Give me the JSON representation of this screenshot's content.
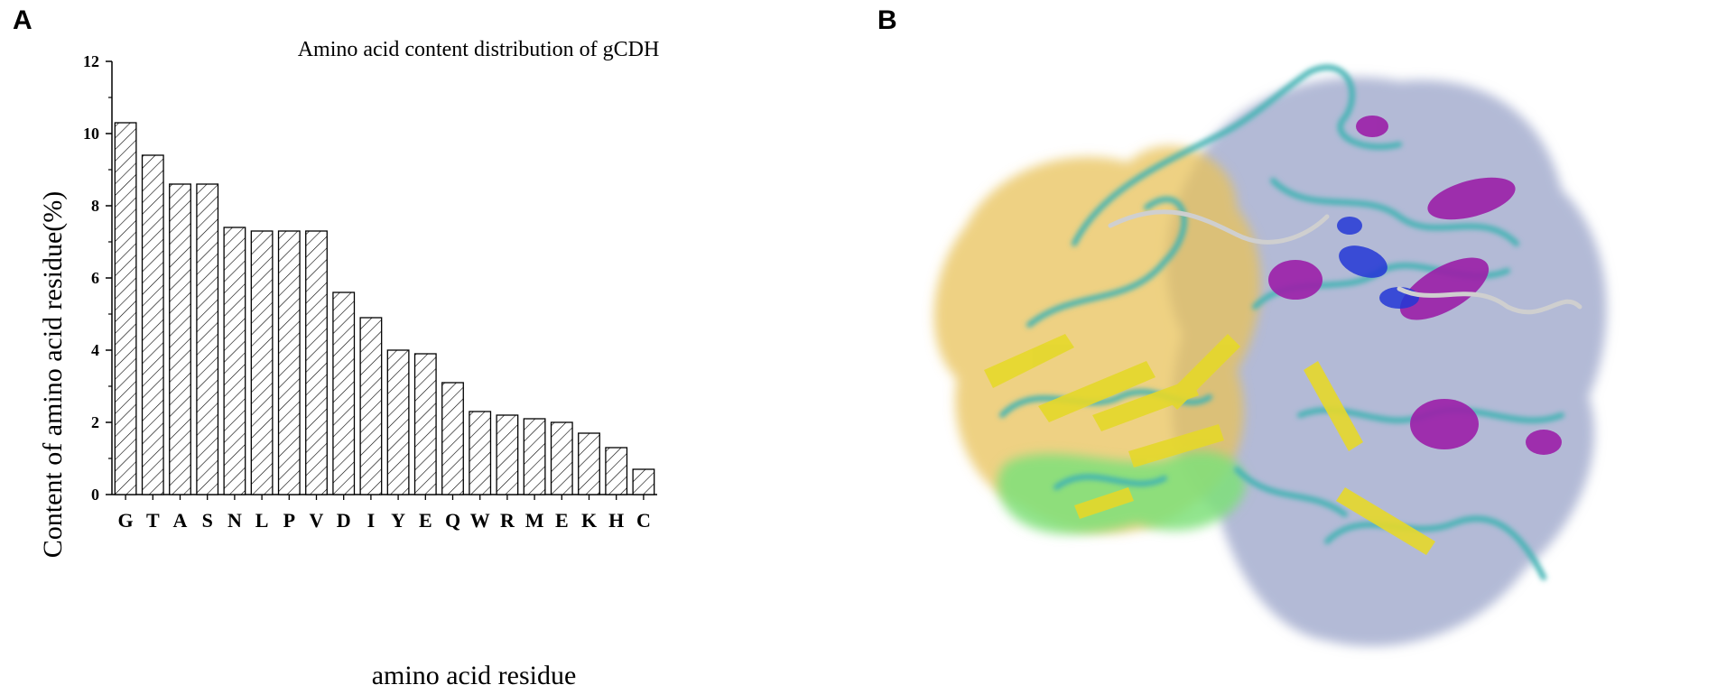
{
  "panels": {
    "a_label": "A",
    "b_label": "B"
  },
  "chart_data": {
    "type": "bar",
    "title": "Amino acid content distribution of gCDH",
    "xlabel": "amino acid residue",
    "ylabel": "Content of amino acid residue(%)",
    "ylim": [
      0,
      12
    ],
    "yticks": [
      "0",
      "2",
      "4",
      "6",
      "8",
      "10",
      "12"
    ],
    "categories": [
      "G",
      "T",
      "A",
      "S",
      "N",
      "L",
      "P",
      "V",
      "D",
      "I",
      "Y",
      "E",
      "Q",
      "W",
      "R",
      "M",
      "E",
      "K",
      "H",
      "C"
    ],
    "values": [
      10.3,
      9.4,
      8.6,
      8.6,
      7.4,
      7.3,
      7.3,
      7.3,
      5.6,
      4.9,
      4.0,
      3.9,
      3.1,
      2.3,
      2.2,
      2.1,
      2.0,
      1.7,
      1.3,
      0.7
    ],
    "bar_fill": "hatched",
    "grid": false
  },
  "structure_image": {
    "description_colors": {
      "surface_left": "#e8c25a",
      "surface_right": "#9aa3c8",
      "surface_patch": "#7ee07a",
      "coil": "#3fb3b3",
      "helix": "#9b1fa8",
      "helix_blue": "#2438d6",
      "strand": "#e5d82a"
    }
  }
}
